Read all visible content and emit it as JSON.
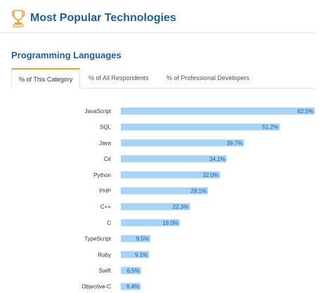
{
  "header": {
    "title": "Most Popular Technologies"
  },
  "section": {
    "title": "Programming Languages"
  },
  "tabs": [
    {
      "label": "% of This Category",
      "active": true
    },
    {
      "label": "% of All Respondents",
      "active": false
    },
    {
      "label": "% of Professional Developers",
      "active": false
    }
  ],
  "colors": {
    "bar": "#a9d3f5",
    "title": "#1f5e98",
    "tab_accent": "#e7a13a",
    "trophy": "#e7a13a"
  },
  "icons": {
    "trophy": "trophy-icon"
  },
  "chart_data": {
    "type": "bar",
    "orientation": "horizontal",
    "categories": [
      "JavaScript",
      "SQL",
      "Java",
      "C#",
      "Python",
      "PHP",
      "C++",
      "C",
      "TypeScript",
      "Ruby",
      "Swift",
      "Objective-C"
    ],
    "values": [
      62.5,
      51.2,
      39.7,
      34.1,
      32.0,
      28.1,
      22.3,
      19.0,
      9.5,
      9.1,
      6.5,
      6.4
    ],
    "value_labels": [
      "62.5%",
      "51.2%",
      "39.7%",
      "34.1%",
      "32.0%",
      "28.1%",
      "22.3%",
      "19.0%",
      "9.5%",
      "9.1%",
      "6.5%",
      "6.4%"
    ],
    "xlim": [
      0,
      62.5
    ],
    "grid": false
  }
}
